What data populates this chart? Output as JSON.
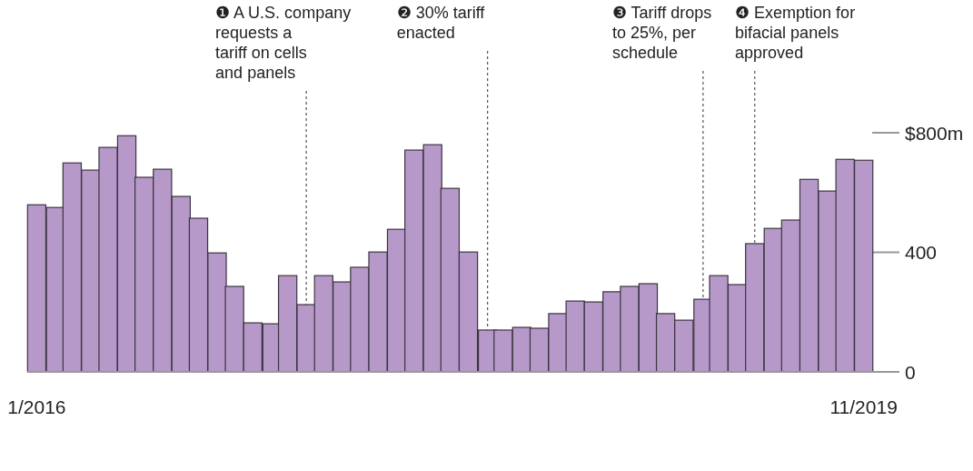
{
  "chart_data": {
    "type": "bar",
    "x": [
      "2016-01",
      "2016-02",
      "2016-03",
      "2016-04",
      "2016-05",
      "2016-06",
      "2016-07",
      "2016-08",
      "2016-09",
      "2016-10",
      "2016-11",
      "2016-12",
      "2017-01",
      "2017-02",
      "2017-03",
      "2017-04",
      "2017-05",
      "2017-06",
      "2017-07",
      "2017-08",
      "2017-09",
      "2017-10",
      "2017-11",
      "2017-12",
      "2018-01",
      "2018-02",
      "2018-03",
      "2018-04",
      "2018-05",
      "2018-06",
      "2018-07",
      "2018-08",
      "2018-09",
      "2018-10",
      "2018-11",
      "2018-12",
      "2019-01",
      "2019-02",
      "2019-03",
      "2019-04",
      "2019-05",
      "2019-06",
      "2019-07",
      "2019-08",
      "2019-09",
      "2019-10",
      "2019-11"
    ],
    "values": [
      559,
      550,
      699,
      675,
      751,
      790,
      651,
      678,
      587,
      514,
      398,
      286,
      164,
      161,
      322,
      225,
      322,
      301,
      350,
      401,
      477,
      742,
      760,
      614,
      401,
      140,
      140,
      149,
      146,
      195,
      237,
      234,
      268,
      286,
      295,
      195,
      173,
      243,
      322,
      292,
      429,
      480,
      508,
      644,
      605,
      711,
      708
    ],
    "color": "#b699c9",
    "ylim": [
      0,
      800
    ],
    "xlim": [
      "2015-12-16",
      "2020-01-01"
    ],
    "yticks": [
      0,
      400,
      {
        "value": 800,
        "label": "$800m"
      }
    ],
    "xticks": [
      {
        "value": "2016-01",
        "label": "1/2016"
      },
      {
        "value": "2019-11",
        "label": "11/2019"
      }
    ],
    "annotations": [
      {
        "text": "❶ A U.S. company requests a tariff on cells and panels",
        "x": "2017-04",
        "y": 225
      },
      {
        "text": "❷ 30% tariff enacted",
        "x": "2018-02",
        "y": 140
      },
      {
        "text": "❸ Tariff drops to 25%, per schedule",
        "x": "2019-02",
        "y": 243
      },
      {
        "text": "❹ Exemption for bifacial panels approved",
        "x": "2019-05",
        "y": 429
      }
    ]
  }
}
